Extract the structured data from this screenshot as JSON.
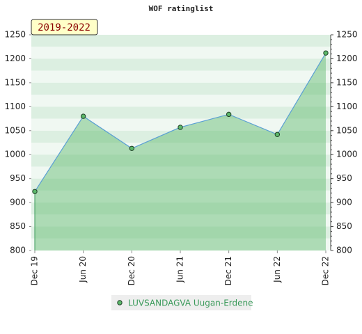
{
  "chart_data": {
    "type": "area",
    "title": "WOF ratinglist",
    "annotation": "2019-2022",
    "categories": [
      "Dec 19",
      "Jun 20",
      "Dec 20",
      "Jun 21",
      "Dec 21",
      "Jun 22",
      "Dec 22"
    ],
    "series": [
      {
        "name": "LUVSANDAGVA Uugan-Erdene",
        "color": "#5cb86a",
        "values": [
          923,
          1080,
          1013,
          1057,
          1084,
          1042,
          1212
        ]
      }
    ],
    "ylim": [
      800,
      1250
    ],
    "yticks": [
      800,
      850,
      900,
      950,
      1000,
      1050,
      1100,
      1150,
      1200,
      1250
    ],
    "y2lim": [
      800,
      1250
    ],
    "y2ticks": [
      800,
      850,
      900,
      950,
      1000,
      1050,
      1100,
      1150,
      1200,
      1250
    ],
    "legend": "bottom"
  }
}
